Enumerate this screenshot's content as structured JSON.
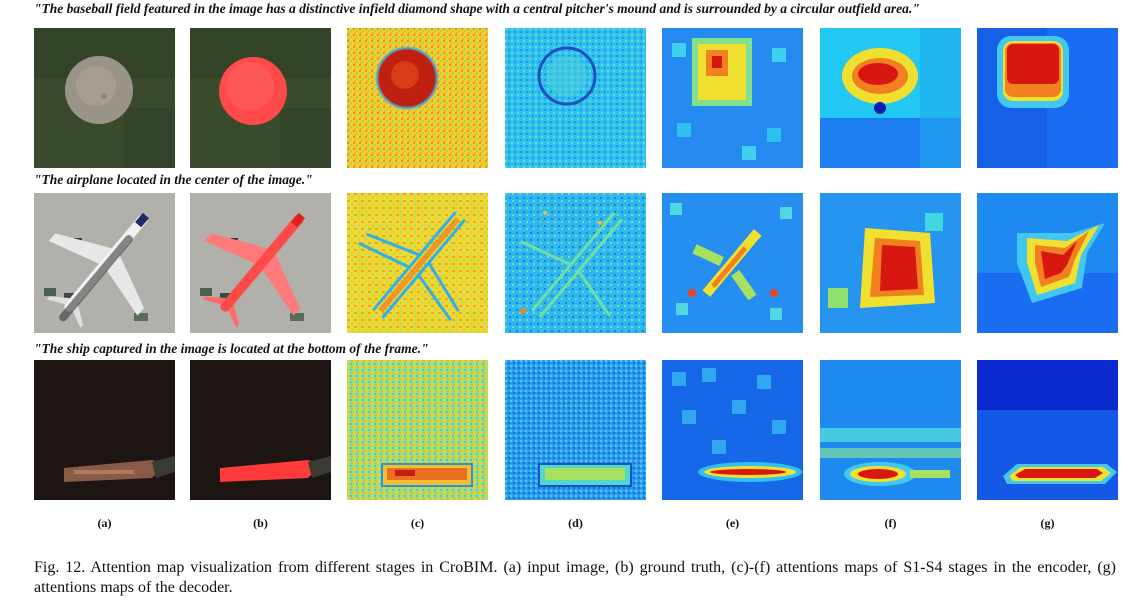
{
  "quotes": [
    "\"The baseball field featured in the image has a distinctive infield diamond shape with a central pitcher's mound and is surrounded by a circular outfield area.\"",
    "\"The airplane located in the center of the image.\"",
    "\"The ship captured in the image is located at the bottom of the frame.\""
  ],
  "sublabels": [
    "(a)",
    "(b)",
    "(c)",
    "(d)",
    "(e)",
    "(f)",
    "(g)"
  ],
  "caption": "Fig. 12.  Attention map visualization from different stages in CroBIM. (a) input image, (b) ground truth, (c)-(f) attentions maps of S1-S4 stages in the encoder, (g) attentions maps of the decoder.",
  "colors": {
    "mask_red": "#ff4a4a",
    "jet_dark_blue": "#0a1fb8",
    "jet_blue": "#1a6cf0",
    "jet_cyan": "#22c8f2",
    "jet_yellow": "#f0e030",
    "jet_orange": "#f08020",
    "jet_red": "#d81810"
  }
}
